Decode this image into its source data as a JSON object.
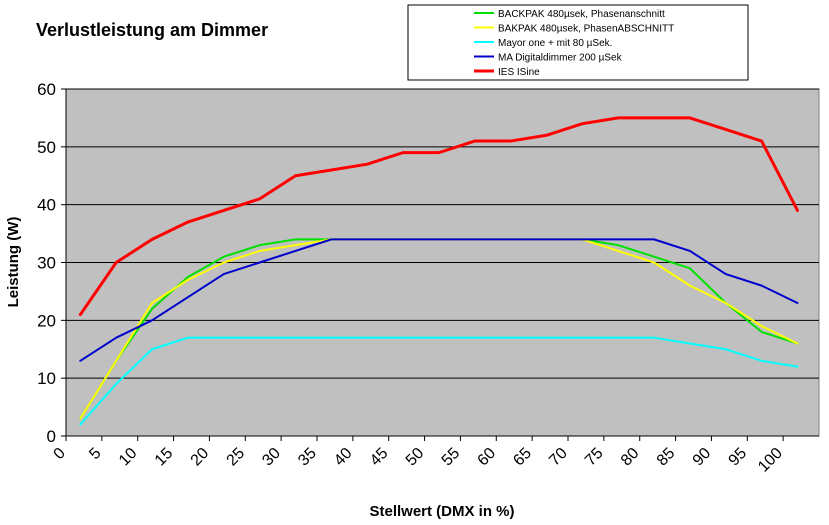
{
  "chart_data": {
    "type": "line",
    "title": "Verlustleistung am Dimmer",
    "xlabel": "Stellwert (DMX in %)",
    "ylabel": "Leistung (W)",
    "ylim": [
      0,
      60
    ],
    "yticks": [
      0,
      10,
      20,
      30,
      40,
      50,
      60
    ],
    "xlim": [
      0,
      105
    ],
    "xticks": [
      0,
      5,
      10,
      15,
      20,
      25,
      30,
      35,
      40,
      45,
      50,
      55,
      60,
      65,
      70,
      75,
      80,
      85,
      90,
      95,
      100
    ],
    "x": [
      2,
      7,
      12,
      17,
      22,
      27,
      32,
      37,
      42,
      47,
      52,
      57,
      62,
      67,
      72,
      77,
      82,
      87,
      92,
      97,
      102
    ],
    "grid": true,
    "legend_position": "top-right",
    "plot_background": "#C0C0C0",
    "series": [
      {
        "name": "BACKPAK 480µsek, Phasenanschnitt",
        "color": "#00E000",
        "values": [
          3,
          13,
          22,
          27.5,
          31,
          33,
          34,
          34,
          34,
          34,
          34,
          34,
          34,
          34,
          34,
          33,
          31,
          29,
          23,
          18,
          16
        ]
      },
      {
        "name": "BAKPAK 480µsek, PhasenABSCHNITT",
        "color": "#FFFF00",
        "values": [
          3,
          13,
          23,
          27,
          30,
          32,
          33,
          34,
          34,
          34,
          34,
          34,
          34,
          34,
          34,
          32,
          30,
          26,
          23,
          19,
          16
        ]
      },
      {
        "name": "Mayor one + mit 80 µSek.",
        "color": "#00FFFF",
        "values": [
          2,
          9,
          15,
          17,
          17,
          17,
          17,
          17,
          17,
          17,
          17,
          17,
          17,
          17,
          17,
          17,
          17,
          16,
          15,
          13,
          12
        ]
      },
      {
        "name": "MA Digitaldimmer 200 µSek",
        "color": "#0000CC",
        "values": [
          13,
          17,
          20,
          24,
          28,
          30,
          32,
          34,
          34,
          34,
          34,
          34,
          34,
          34,
          34,
          34,
          34,
          32,
          28,
          26,
          23
        ]
      },
      {
        "name": "IES ISine",
        "color": "#FF0000",
        "values": [
          21,
          30,
          34,
          37,
          39,
          41,
          45,
          46,
          47,
          49,
          49,
          51,
          51,
          52,
          54,
          55,
          55,
          55,
          53,
          51,
          39
        ]
      }
    ]
  }
}
